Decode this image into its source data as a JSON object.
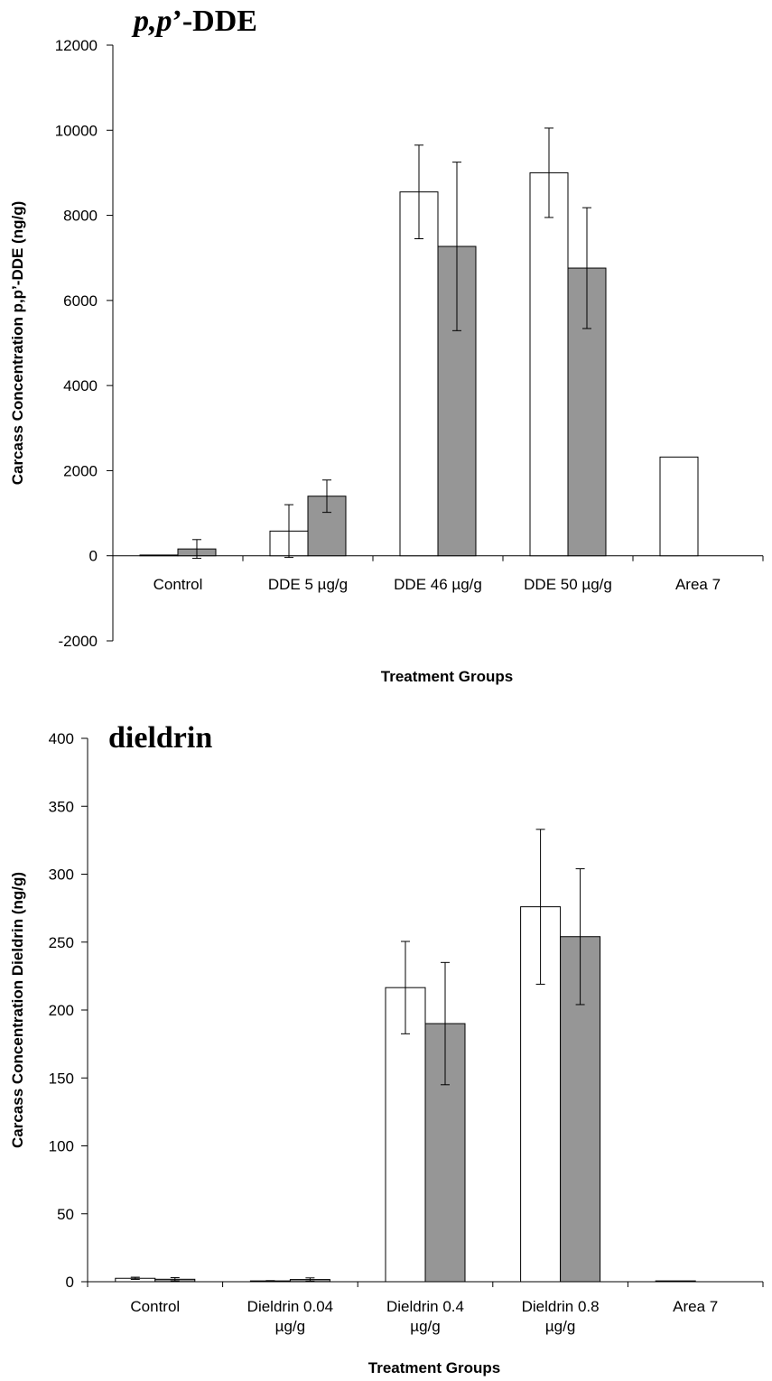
{
  "chart_data": [
    {
      "type": "bar",
      "title_parts": [
        {
          "text": "p,p",
          "italic": true
        },
        {
          "text": "’-DDE",
          "italic": false
        }
      ],
      "xlabel": "Treatment Groups",
      "ylabel": "Carcass Concentration p,p’-DDE (ng/g)",
      "ylim": [
        -2000,
        12000
      ],
      "yticks": [
        -2000,
        0,
        2000,
        4000,
        6000,
        8000,
        10000,
        12000
      ],
      "categories": [
        [
          "Control"
        ],
        [
          "DDE 5 µg/g"
        ],
        [
          "DDE 46 µg/g"
        ],
        [
          "DDE 50 µg/g"
        ],
        [
          "Area 7"
        ]
      ],
      "series": [
        {
          "color": "#ffffff",
          "values": [
            10,
            580,
            8550,
            9000,
            2320
          ],
          "errors": [
            null,
            620,
            1100,
            1050,
            null
          ]
        },
        {
          "color": "#969696",
          "values": [
            160,
            1400,
            7270,
            6760,
            null
          ],
          "errors": [
            220,
            380,
            1980,
            1420,
            null
          ]
        }
      ],
      "grid": false,
      "legend": "none"
    },
    {
      "type": "bar",
      "title_parts": [
        {
          "text": "dieldrin",
          "italic": false
        }
      ],
      "xlabel": "Treatment Groups",
      "ylabel": "Carcass Concentration Dieldrin (ng/g)",
      "ylim": [
        0,
        400
      ],
      "yticks": [
        0,
        50,
        100,
        150,
        200,
        250,
        300,
        350,
        400
      ],
      "categories": [
        [
          "Control"
        ],
        [
          "Dieldrin 0.04",
          "µg/g"
        ],
        [
          "Dieldrin 0.4",
          "µg/g"
        ],
        [
          "Dieldrin 0.8",
          "µg/g"
        ],
        [
          "Area 7"
        ]
      ],
      "series": [
        {
          "color": "#ffffff",
          "values": [
            2.5,
            0.6,
            216.5,
            276,
            0.6
          ],
          "errors": [
            0.8,
            0.2,
            34,
            57,
            null
          ]
        },
        {
          "color": "#969696",
          "values": [
            1.8,
            1.6,
            190,
            254,
            null
          ],
          "errors": [
            1.2,
            1.2,
            45,
            50,
            null
          ]
        }
      ],
      "grid": false,
      "legend": "none"
    }
  ]
}
